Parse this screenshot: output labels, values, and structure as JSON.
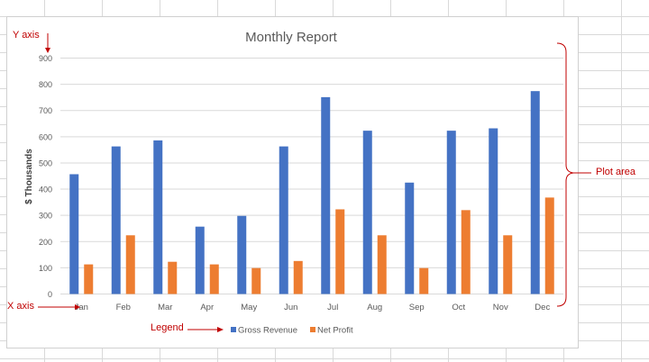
{
  "chart_data": {
    "type": "bar",
    "title": "Monthly Report",
    "xlabel": "",
    "ylabel": "$ Thousands",
    "ylim": [
      0,
      900
    ],
    "yticks": [
      0,
      100,
      200,
      300,
      400,
      500,
      600,
      700,
      800,
      900
    ],
    "grid": true,
    "legend_position": "bottom",
    "categories": [
      "Jan",
      "Feb",
      "Mar",
      "Apr",
      "May",
      "Jun",
      "Jul",
      "Aug",
      "Sep",
      "Oct",
      "Nov",
      "Dec"
    ],
    "series": [
      {
        "name": "Gross Revenue",
        "color": "#4472c4",
        "values": [
          457,
          563,
          586,
          257,
          298,
          563,
          751,
          623,
          425,
          623,
          632,
          774
        ]
      },
      {
        "name": "Net Profit",
        "color": "#ed7d31",
        "values": [
          113,
          224,
          123,
          113,
          99,
          126,
          323,
          224,
          99,
          320,
          224,
          368
        ]
      }
    ]
  },
  "annotations": {
    "y_axis": "Y axis",
    "x_axis": "X axis",
    "legend": "Legend",
    "plot_area": "Plot area",
    "color": "#c00000"
  }
}
